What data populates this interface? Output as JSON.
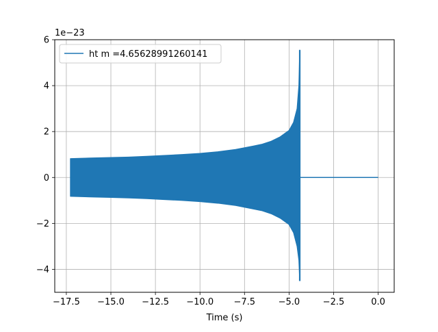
{
  "chart_data": {
    "type": "line",
    "title": "",
    "xlabel": "Time (s)",
    "ylabel": "",
    "y_scale_label": "1e−23",
    "xlim": [
      -18.15,
      0.9
    ],
    "ylim": [
      -5.0,
      6.0
    ],
    "xticks": [
      -17.5,
      -15.0,
      -12.5,
      -10.0,
      -7.5,
      -5.0,
      -2.5,
      0.0
    ],
    "xtick_labels": [
      "−17.5",
      "−15.0",
      "−12.5",
      "−10.0",
      "−7.5",
      "−5.0",
      "−2.5",
      "0.0"
    ],
    "yticks": [
      -4,
      -2,
      0,
      2,
      4,
      6
    ],
    "ytick_labels": [
      "−4",
      "−2",
      "0",
      "2",
      "4",
      "6"
    ],
    "grid": true,
    "legend_position": "top-left",
    "series": [
      {
        "name": "ht m =4.65628991260141",
        "color": "#1f77b4",
        "x": [
          -17.27,
          -16.0,
          -15.0,
          -14.0,
          -13.0,
          -12.0,
          -11.0,
          -10.0,
          -9.0,
          -8.0,
          -7.0,
          -6.5,
          -6.0,
          -5.5,
          -5.0,
          -4.75,
          -4.55,
          -4.45,
          -4.4,
          -4.38,
          0.0
        ],
        "upper": [
          0.82,
          0.85,
          0.87,
          0.89,
          0.92,
          0.96,
          1.0,
          1.05,
          1.12,
          1.22,
          1.37,
          1.45,
          1.58,
          1.77,
          2.05,
          2.4,
          3.0,
          4.0,
          5.55,
          0.0,
          0.0
        ],
        "lower": [
          -0.82,
          -0.85,
          -0.87,
          -0.89,
          -0.92,
          -0.96,
          -1.0,
          -1.05,
          -1.12,
          -1.22,
          -1.37,
          -1.45,
          -1.58,
          -1.77,
          -2.05,
          -2.4,
          -3.0,
          -3.6,
          -4.5,
          0.0,
          0.0
        ]
      }
    ]
  }
}
